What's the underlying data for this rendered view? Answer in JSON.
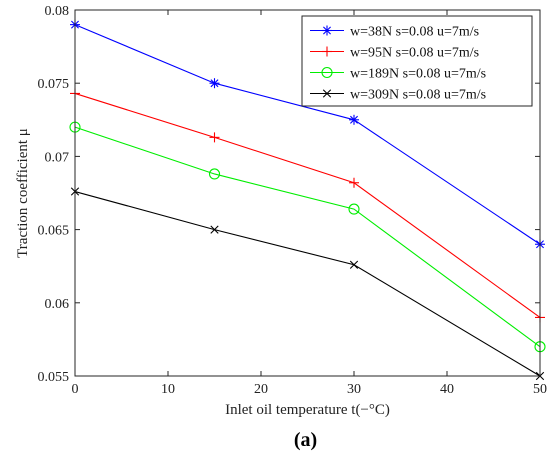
{
  "chart_data": {
    "type": "line",
    "xlabel": "Inlet oil temperature   t(−°C)",
    "ylabel": "Traction coefficient   μ",
    "xlim": [
      0,
      50
    ],
    "ylim": [
      0.055,
      0.08
    ],
    "xticks": [
      "0",
      "10",
      "20",
      "30",
      "40",
      "50"
    ],
    "yticks": [
      "0.055",
      "0.06",
      "0.065",
      "0.07",
      "0.075",
      "0.08"
    ],
    "grid": false,
    "legend_position": "top-right",
    "x": [
      0,
      15,
      30,
      50
    ],
    "series": [
      {
        "name": "w=38N s=0.08 u=7m/s",
        "values": [
          0.079,
          0.075,
          0.0725,
          0.064
        ],
        "color": "#0000ff",
        "marker": "asterisk"
      },
      {
        "name": "w=95N s=0.08 u=7m/s",
        "values": [
          0.0743,
          0.0713,
          0.0682,
          0.059
        ],
        "color": "#ff0000",
        "marker": "plus"
      },
      {
        "name": "w=189N s=0.08 u=7m/s",
        "values": [
          0.072,
          0.0688,
          0.0664,
          0.057
        ],
        "color": "#00ee00",
        "marker": "circle"
      },
      {
        "name": "w=309N s=0.08 u=7m/s",
        "values": [
          0.0676,
          0.065,
          0.0626,
          0.055
        ],
        "color": "#000000",
        "marker": "x"
      }
    ]
  },
  "caption": "(a)"
}
